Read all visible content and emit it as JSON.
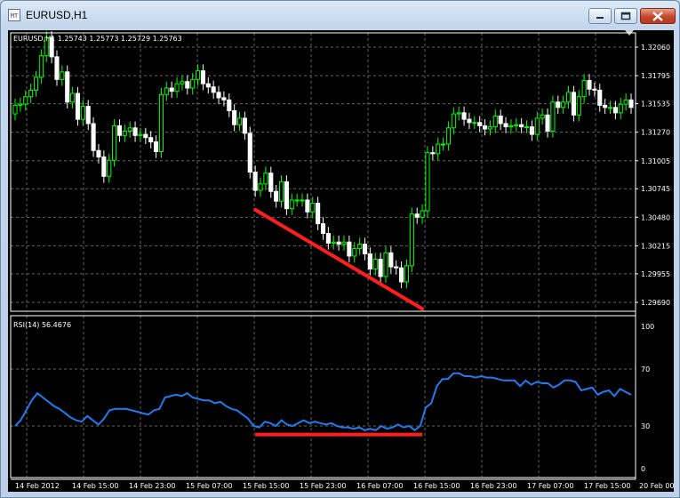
{
  "window": {
    "title": "EURUSD,H1",
    "app_icon": "chart-window-icon",
    "controls": [
      "minimize-icon",
      "maximize-icon",
      "close-icon"
    ]
  },
  "chart_info": {
    "header": "EURUSD,H1  1.25743 1.25773 1.25729 1.25763",
    "rsi_header": "RSI(14) 56.4676"
  },
  "colors": {
    "background": "#000000",
    "grid": "#646464",
    "bull_candle": "#00ff00",
    "bear_candle": "#ffffff",
    "rsi_line": "#1e7cf0",
    "trendline": "#ff1e1e",
    "axis_text": "#ffffff"
  },
  "chart_data": [
    {
      "type": "candlestick",
      "symbol": "EURUSD",
      "timeframe": "H1",
      "ylim": [
        1.2969,
        1.3206
      ],
      "y_ticks": [
        "1.32060",
        "1.31795",
        "1.31535",
        "1.31270",
        "1.31005",
        "1.30745",
        "1.30480",
        "1.30215",
        "1.29955",
        "1.29690"
      ],
      "x_ticks": [
        "14 Feb 2012",
        "14 Feb 15:00",
        "14 Feb 23:00",
        "15 Feb 07:00",
        "15 Feb 15:00",
        "15 Feb 23:00",
        "16 Feb 07:00",
        "16 Feb 15:00",
        "16 Feb 23:00",
        "17 Feb 07:00",
        "17 Feb 15:00",
        "20 Feb 00"
      ],
      "close": [
        1.3152,
        1.3153,
        1.316,
        1.3166,
        1.3178,
        1.3198,
        1.3215,
        1.3197,
        1.3176,
        1.3183,
        1.3155,
        1.3163,
        1.3139,
        1.3151,
        1.3135,
        1.311,
        1.3104,
        1.3086,
        1.3101,
        1.3133,
        1.3124,
        1.3128,
        1.3131,
        1.3124,
        1.3125,
        1.3122,
        1.3118,
        1.3109,
        1.3162,
        1.3168,
        1.3165,
        1.3172,
        1.3174,
        1.3168,
        1.3176,
        1.3184,
        1.3172,
        1.3169,
        1.3164,
        1.3159,
        1.3157,
        1.3147,
        1.3134,
        1.314,
        1.3126,
        1.309,
        1.3073,
        1.3079,
        1.3089,
        1.3072,
        1.3063,
        1.3081,
        1.3056,
        1.3064,
        1.3064,
        1.3064,
        1.3053,
        1.3061,
        1.3042,
        1.3033,
        1.3024,
        1.3025,
        1.3023,
        1.3025,
        1.3012,
        1.3019,
        1.3023,
        1.3014,
        1.3,
        1.3009,
        1.2993,
        1.3015,
        1.3002,
        1.3001,
        1.2988,
        1.3003,
        1.3051,
        1.3048,
        1.3054,
        1.3108,
        1.3107,
        1.3116,
        1.3116,
        1.3131,
        1.3144,
        1.3145,
        1.3139,
        1.3136,
        1.3136,
        1.3133,
        1.313,
        1.3132,
        1.3142,
        1.3135,
        1.3132,
        1.3133,
        1.3134,
        1.3132,
        1.3132,
        1.3125,
        1.314,
        1.3143,
        1.3128,
        1.3155,
        1.315,
        1.3155,
        1.3164,
        1.3143,
        1.316,
        1.3175,
        1.3167,
        1.3166,
        1.3152,
        1.315,
        1.315,
        1.3145,
        1.3153,
        1.3157,
        1.315
      ],
      "low_high_note": "wicks estimated",
      "annotation": "red downward trendline on price lows"
    },
    {
      "type": "line",
      "name": "RSI(14)",
      "ylim": [
        0,
        100
      ],
      "y_ticks": [
        "100",
        "70",
        "30",
        "0"
      ],
      "values": [
        30,
        34,
        41,
        48,
        53,
        50,
        47,
        44,
        42,
        39,
        36,
        34,
        33,
        37,
        34,
        31,
        35,
        41,
        42,
        42,
        42,
        41,
        40,
        39,
        38,
        41,
        42,
        50,
        51,
        52,
        51,
        53,
        50,
        49,
        48,
        48,
        46,
        47,
        44,
        42,
        41,
        38,
        35,
        30,
        29,
        33,
        32,
        30,
        34,
        31,
        30,
        32,
        34,
        32,
        33,
        32,
        31,
        32,
        30,
        29,
        29,
        28,
        29,
        27,
        28,
        27,
        30,
        28,
        29,
        31,
        29,
        30,
        27,
        30,
        43,
        46,
        58,
        63,
        63,
        67,
        67,
        65,
        65,
        64,
        65,
        64,
        64,
        63,
        62,
        62,
        62,
        58,
        62,
        59,
        61,
        60,
        60,
        57,
        59,
        62,
        62,
        61,
        55,
        56,
        57,
        52,
        54,
        55,
        51,
        56,
        54,
        52
      ],
      "annotation": "red horizontal line at RSI ≈ 24"
    }
  ]
}
